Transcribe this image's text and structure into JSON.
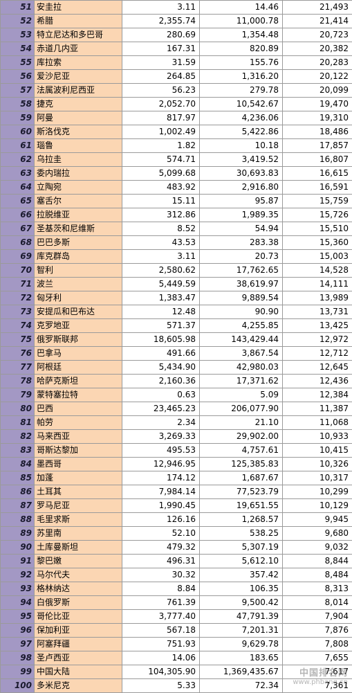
{
  "rows": [
    [
      "51",
      "安圭拉",
      "3.11",
      "14.46",
      "21,493"
    ],
    [
      "52",
      "希腊",
      "2,355.74",
      "11,000.78",
      "21,414"
    ],
    [
      "53",
      "特立尼达和多巴哥",
      "280.69",
      "1,354.48",
      "20,723"
    ],
    [
      "54",
      "赤道几内亚",
      "167.31",
      "820.89",
      "20,382"
    ],
    [
      "55",
      "库拉索",
      "31.59",
      "155.76",
      "20,283"
    ],
    [
      "56",
      "爱沙尼亚",
      "264.85",
      "1,316.20",
      "20,122"
    ],
    [
      "57",
      "法属波利尼西亚",
      "56.23",
      "279.78",
      "20,099"
    ],
    [
      "58",
      "捷克",
      "2,052.70",
      "10,542.67",
      "19,470"
    ],
    [
      "59",
      "阿曼",
      "817.97",
      "4,236.06",
      "19,310"
    ],
    [
      "60",
      "斯洛伐克",
      "1,002.49",
      "5,422.86",
      "18,486"
    ],
    [
      "61",
      "瑙鲁",
      "1.82",
      "10.18",
      "17,857"
    ],
    [
      "62",
      "乌拉圭",
      "574.71",
      "3,419.52",
      "16,807"
    ],
    [
      "63",
      "委内瑞拉",
      "5,099.68",
      "30,693.83",
      "16,615"
    ],
    [
      "64",
      "立陶宛",
      "483.92",
      "2,916.80",
      "16,591"
    ],
    [
      "65",
      "塞舌尔",
      "15.11",
      "95.87",
      "15,759"
    ],
    [
      "66",
      "拉脱维亚",
      "312.86",
      "1,989.35",
      "15,726"
    ],
    [
      "67",
      "圣基茨和尼维斯",
      "8.52",
      "54.94",
      "15,510"
    ],
    [
      "68",
      "巴巴多斯",
      "43.53",
      "283.38",
      "15,360"
    ],
    [
      "69",
      "库克群岛",
      "3.11",
      "20.73",
      "15,003"
    ],
    [
      "70",
      "智利",
      "2,580.62",
      "17,762.65",
      "14,528"
    ],
    [
      "71",
      "波兰",
      "5,449.59",
      "38,619.97",
      "14,111"
    ],
    [
      "72",
      "匈牙利",
      "1,383.47",
      "9,889.54",
      "13,989"
    ],
    [
      "73",
      "安提瓜和巴布达",
      "12.48",
      "90.90",
      "13,731"
    ],
    [
      "74",
      "克罗地亚",
      "571.37",
      "4,255.85",
      "13,425"
    ],
    [
      "75",
      "俄罗斯联邦",
      "18,605.98",
      "143,429.44",
      "12,972"
    ],
    [
      "76",
      "巴拿马",
      "491.66",
      "3,867.54",
      "12,712"
    ],
    [
      "77",
      "阿根廷",
      "5,434.90",
      "42,980.03",
      "12,645"
    ],
    [
      "78",
      "哈萨克斯坦",
      "2,160.36",
      "17,371.62",
      "12,436"
    ],
    [
      "79",
      "蒙特塞拉特",
      "0.63",
      "5.09",
      "12,384"
    ],
    [
      "80",
      "巴西",
      "23,465.23",
      "206,077.90",
      "11,387"
    ],
    [
      "81",
      "帕劳",
      "2.34",
      "21.10",
      "11,068"
    ],
    [
      "82",
      "马来西亚",
      "3,269.33",
      "29,902.00",
      "10,933"
    ],
    [
      "83",
      "哥斯达黎加",
      "495.53",
      "4,757.61",
      "10,415"
    ],
    [
      "84",
      "墨西哥",
      "12,946.95",
      "125,385.83",
      "10,326"
    ],
    [
      "85",
      "加蓬",
      "174.12",
      "1,687.67",
      "10,317"
    ],
    [
      "86",
      "土耳其",
      "7,984.14",
      "77,523.79",
      "10,299"
    ],
    [
      "87",
      "罗马尼亚",
      "1,990.45",
      "19,651.55",
      "10,129"
    ],
    [
      "88",
      "毛里求斯",
      "126.16",
      "1,268.57",
      "9,945"
    ],
    [
      "89",
      "苏里南",
      "52.10",
      "538.25",
      "9,680"
    ],
    [
      "90",
      "土库曼斯坦",
      "479.32",
      "5,307.19",
      "9,032"
    ],
    [
      "91",
      "黎巴嫩",
      "496.31",
      "5,612.10",
      "8,844"
    ],
    [
      "92",
      "马尔代夫",
      "30.32",
      "357.42",
      "8,484"
    ],
    [
      "93",
      "格林纳达",
      "8.84",
      "106.35",
      "8,313"
    ],
    [
      "94",
      "白俄罗斯",
      "761.39",
      "9,500.42",
      "8,014"
    ],
    [
      "95",
      "哥伦比亚",
      "3,777.40",
      "47,791.39",
      "7,904"
    ],
    [
      "96",
      "保加利亚",
      "567.18",
      "7,201.31",
      "7,876"
    ],
    [
      "97",
      "阿塞拜疆",
      "751.93",
      "9,629.78",
      "7,808"
    ],
    [
      "98",
      "圣卢西亚",
      "14.06",
      "183.65",
      "7,655"
    ],
    [
      "99",
      "中国大陆",
      "104,305.90",
      "1,369,435.67",
      "7,617"
    ],
    [
      "100",
      "多米尼克",
      "5.33",
      "72.34",
      "7,361"
    ]
  ],
  "watermark": {
    "line1": "中国排名网",
    "line2": "www.phbang.cn"
  }
}
